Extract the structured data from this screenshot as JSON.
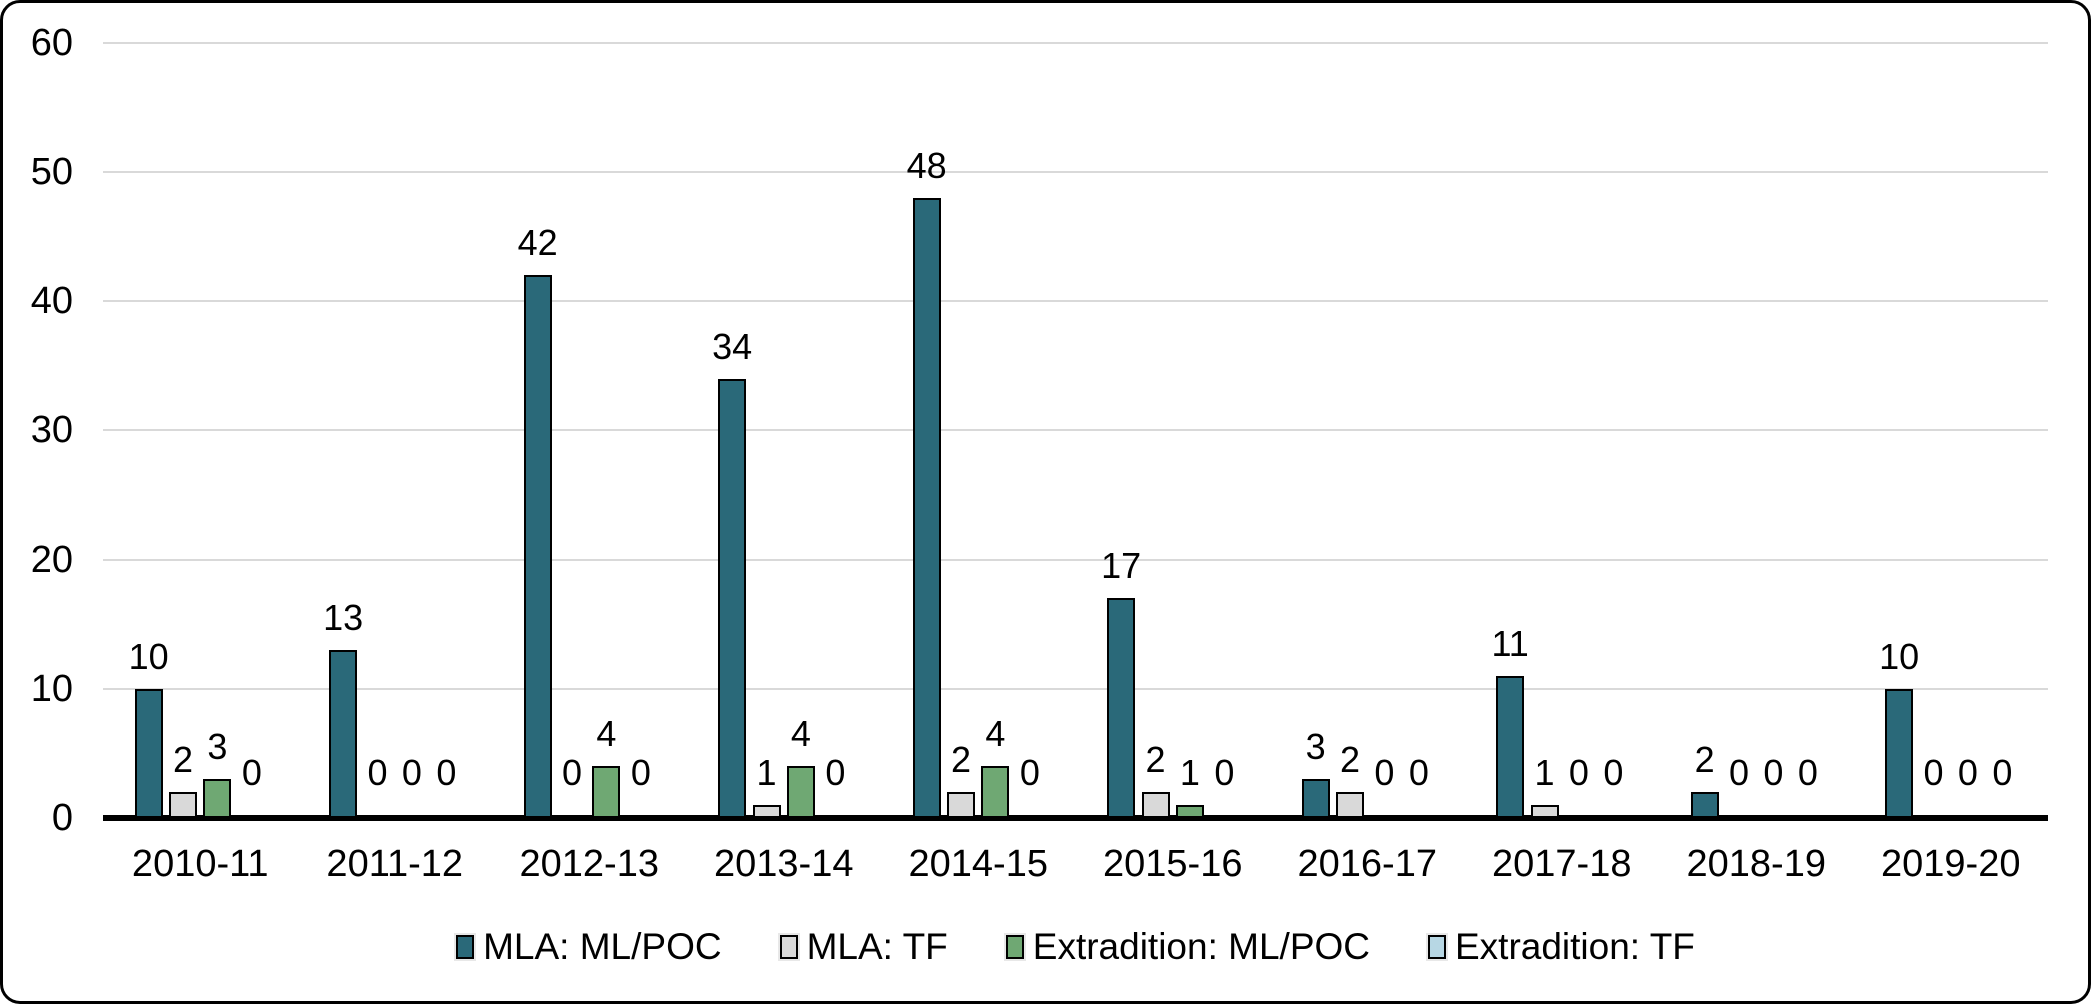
{
  "chart_data": {
    "type": "bar",
    "title": "",
    "xlabel": "",
    "ylabel": "",
    "categories": [
      "2010-11",
      "2011-12",
      "2012-13",
      "2013-14",
      "2014-15",
      "2015-16",
      "2016-17",
      "2017-18",
      "2018-19",
      "2019-20"
    ],
    "series": [
      {
        "name": "MLA: ML/POC",
        "color": "#2a6979",
        "values": [
          10,
          13,
          42,
          34,
          48,
          17,
          3,
          11,
          2,
          10
        ]
      },
      {
        "name": "MLA: TF",
        "color": "#d9d9d9",
        "values": [
          2,
          0,
          0,
          1,
          2,
          2,
          2,
          1,
          0,
          0
        ]
      },
      {
        "name": "Extradition: ML/POC",
        "color": "#6fa873",
        "values": [
          3,
          0,
          4,
          4,
          4,
          1,
          0,
          0,
          0,
          0
        ]
      },
      {
        "name": "Extradition: TF",
        "color": "#b7d7e4",
        "values": [
          0,
          0,
          0,
          0,
          0,
          0,
          0,
          0,
          0,
          0
        ]
      }
    ],
    "ylim": [
      0,
      60
    ],
    "yticks": [
      0,
      10,
      20,
      30,
      40,
      50,
      60
    ],
    "grid": true,
    "data_labels": true,
    "legend_position": "bottom",
    "colors": {
      "gridline": "#d9d9d9",
      "axis_line": "#000000",
      "text": "#000000",
      "background": "#ffffff"
    }
  }
}
